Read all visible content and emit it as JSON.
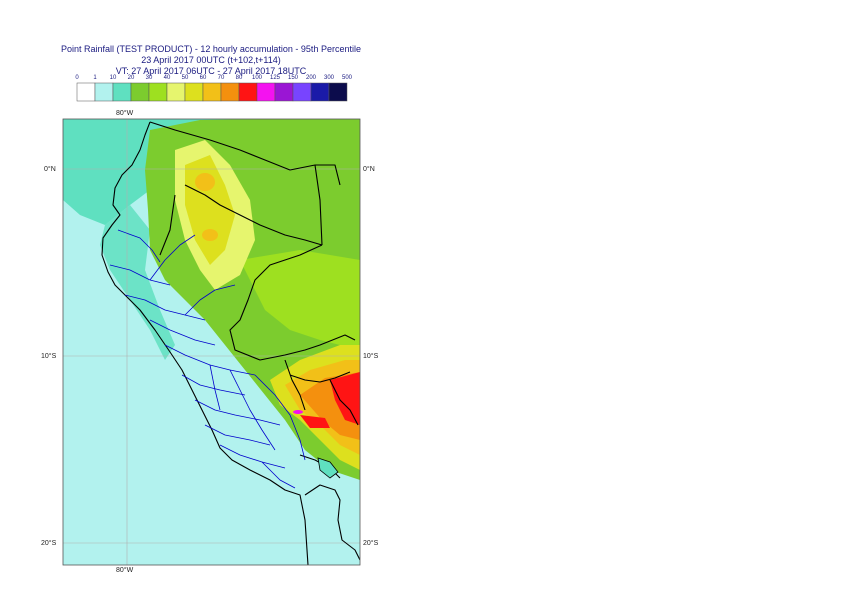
{
  "title": {
    "line1": "Point Rainfall (TEST PRODUCT) - 12 hourly accumulation - 95th Percentile",
    "line2": "23 April 2017 00UTC (t+102,t+114)",
    "line3": "VT: 27 April 2017 06UTC - 27 April 2017 18UTC"
  },
  "legend": {
    "ticks": [
      "0",
      "1",
      "10",
      "20",
      "30",
      "40",
      "50",
      "60",
      "70",
      "80",
      "100",
      "125",
      "150",
      "200",
      "300",
      "500"
    ],
    "colors": [
      "#ffffff",
      "#b2f2ee",
      "#5fe0c0",
      "#7ccc2e",
      "#9ee020",
      "#e6f56e",
      "#dde01e",
      "#f2c018",
      "#f4900e",
      "#ff1414",
      "#f412f0",
      "#9a16d4",
      "#7844ff",
      "#1a1aa8",
      "#0c0c4c"
    ]
  },
  "map": {
    "lon_labels": {
      "top": "80°W",
      "bottom": "80°W"
    },
    "lat_labels": [
      {
        "left": "0°N",
        "right": "0°N"
      },
      {
        "left": "10°S",
        "right": "10°S"
      },
      {
        "left": "20°S",
        "right": "20°S"
      }
    ],
    "colors": {
      "ocean_light": "#b2f2ee",
      "ocean_mid": "#5fe0c0",
      "land_green": "#7ccc2e",
      "land_lime": "#9ee020",
      "pale_yellow": "#e6f56e",
      "yellow": "#dde01e",
      "orange": "#f2c018",
      "dark_orange": "#f4900e",
      "red": "#ff1414",
      "magenta": "#f412f0",
      "grid": "#b0b0b0",
      "border_black": "#000000",
      "border_blue": "#0000cc"
    }
  }
}
